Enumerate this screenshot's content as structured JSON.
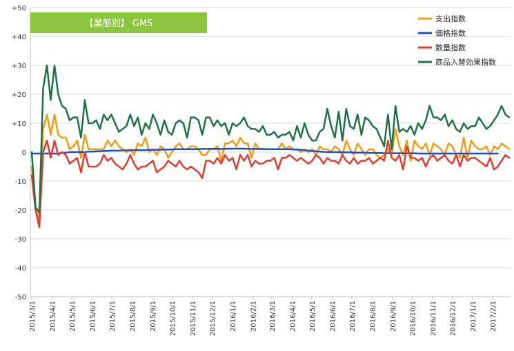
{
  "chart_data": {
    "type": "line",
    "title": "【業態別】 GMS",
    "title_box_color": "#8cc63f",
    "ylim": [
      -50,
      50
    ],
    "y_ticks": [
      50,
      40,
      30,
      20,
      10,
      0,
      -10,
      -20,
      -30,
      -40,
      -50
    ],
    "y_tick_labels": [
      "+50",
      "+40",
      "+30",
      "+20",
      "+10",
      "0",
      "-10",
      "-20",
      "-30",
      "-40",
      "-50"
    ],
    "x_start": "2015/3/1",
    "x_end": "2017/2/26",
    "x_tick_labels": [
      "2015/3/1",
      "2015/4/1",
      "2015/5/1",
      "2015/6/1",
      "2015/7/1",
      "2015/8/1",
      "2015/9/1",
      "2015/10/1",
      "2015/11/1",
      "2015/12/1",
      "2016/1/1",
      "2016/2/1",
      "2016/3/1",
      "2016/4/1",
      "2016/5/1",
      "2016/6/1",
      "2016/7/1",
      "2016/8/1",
      "2016/9/1",
      "2016/10/1",
      "2016/11/1",
      "2016/12/1",
      "2017/1/1",
      "2017/2/1"
    ],
    "grid": "horizontal",
    "legend_position": "top-right",
    "series": [
      {
        "name": "支出指数",
        "color": "#f39c12",
        "values": [
          -5,
          -20,
          -23,
          8,
          13,
          6,
          13,
          6,
          5,
          5,
          1,
          2,
          4,
          -2,
          6,
          1,
          1,
          1,
          1,
          1,
          4,
          2,
          4,
          2,
          1,
          0,
          1,
          -1,
          3,
          2,
          5,
          0,
          1,
          -1,
          2,
          1,
          -2,
          0,
          2,
          3,
          1,
          1,
          2,
          2,
          1,
          -1,
          -1,
          1,
          1,
          2,
          -3,
          3,
          3,
          4,
          2,
          5,
          3,
          3,
          -2,
          3,
          1,
          1,
          1,
          1,
          1,
          1,
          3,
          1,
          2,
          1,
          1,
          0,
          1,
          0,
          1,
          -1,
          2,
          1,
          1,
          0,
          2,
          1,
          -1,
          4,
          1,
          -1,
          3,
          1,
          -1,
          1,
          1,
          -1,
          -2,
          -1,
          1,
          -1,
          8,
          2,
          -1,
          4,
          -3,
          4,
          2,
          1,
          3,
          -1,
          3,
          2,
          1,
          -1,
          3,
          2,
          -1,
          -2,
          5,
          -2,
          4,
          2,
          1,
          1,
          2,
          -1,
          2,
          1,
          3,
          2,
          1
        ]
      },
      {
        "name": "価格指数",
        "color": "#1f4fc4",
        "values": [
          -0.5,
          -0.5,
          -0.5,
          -0.5,
          -0.5,
          -0.5,
          -0.5,
          -0.5,
          -0.3,
          -0.2,
          0,
          0,
          0,
          0,
          0,
          0.2,
          0.2,
          0.3,
          0.3,
          0.4,
          0.4,
          0.5,
          0.5,
          0.5,
          0.6,
          0.6,
          0.6,
          0.7,
          0.7,
          0.7,
          0.7,
          0.8,
          0.8,
          0.8,
          0.8,
          0.9,
          0.9,
          0.9,
          1,
          1,
          1,
          1,
          1,
          1,
          1,
          1.1,
          1.1,
          1.1,
          1.1,
          1.1,
          1.1,
          1.1,
          1.2,
          1.2,
          1.2,
          1.2,
          1.2,
          1.1,
          1.1,
          1.1,
          1.1,
          1.1,
          1,
          1,
          1,
          1,
          1,
          1,
          1,
          0.9,
          0.9,
          0.8,
          0.6,
          0.5,
          0.4,
          0.3,
          0.2,
          0.1,
          0,
          0,
          0,
          0,
          -0.1,
          -0.1,
          -0.1,
          -0.2,
          -0.2,
          -0.2,
          -0.2,
          -0.3,
          -0.3,
          -0.3,
          -0.3,
          -0.4,
          -0.4,
          -0.4,
          -0.4,
          -0.4,
          -0.4,
          -0.4,
          -0.4,
          -0.4,
          -0.5,
          -0.5,
          -0.5,
          -0.5,
          -0.5,
          -0.5,
          -0.5,
          -0.5,
          -0.5,
          -0.5,
          -0.5,
          -0.5,
          -0.5,
          -0.5,
          -0.5,
          -0.5,
          -0.5,
          -0.5,
          -0.5,
          -0.5,
          -0.5,
          -0.5
        ]
      },
      {
        "name": "数量指数",
        "color": "#e03c31",
        "values": [
          -8,
          -20,
          -26,
          0,
          4,
          -2,
          4,
          -1,
          0,
          -1,
          -4,
          -3,
          -2,
          -7,
          0,
          -5,
          -5,
          -5,
          -4,
          -1,
          -3,
          -2,
          -4,
          -5,
          -6,
          -4,
          -1,
          -4,
          -6,
          -5,
          -5,
          -4,
          -3,
          -7,
          -6,
          -5,
          -3,
          -4,
          -5,
          -3,
          -5,
          -6,
          -5,
          -6,
          -7,
          -9,
          -3,
          -3,
          -4,
          -2,
          -4,
          -1,
          -3,
          -2,
          -6,
          -1,
          -3,
          -1,
          -5,
          -3,
          -4,
          -4,
          -3,
          -3,
          -2,
          -6,
          -2,
          -2,
          -1,
          -2,
          -3,
          -2,
          -3,
          -4,
          -3,
          -1,
          -2,
          -4,
          -2,
          -3,
          -3,
          -4,
          -1,
          -3,
          -4,
          -2,
          -4,
          -3,
          -3,
          -2,
          -4,
          -3,
          -2,
          -3,
          4,
          -2,
          -3,
          -1,
          -6,
          2,
          -2,
          -2,
          -3,
          -2,
          -5,
          -2,
          -1,
          -3,
          -2,
          -1,
          -3,
          -4,
          -1,
          -5,
          -1,
          -3,
          -2,
          -2,
          -3,
          -4,
          -5,
          -2,
          -6,
          -5,
          -3,
          -1,
          -2
        ]
      },
      {
        "name": "商品入替効果指数",
        "color": "#1e7145",
        "values": [
          0,
          -19,
          -21,
          22,
          30,
          18,
          30,
          20,
          16,
          15,
          11,
          12,
          12,
          5,
          18,
          10,
          10,
          11,
          8,
          13,
          11,
          13,
          10,
          7,
          8,
          9,
          13,
          9,
          12,
          6,
          10,
          8,
          13,
          10,
          6,
          11,
          7,
          6,
          10,
          11,
          10,
          5,
          12,
          12,
          11,
          6,
          12,
          12,
          9,
          11,
          9,
          10,
          6,
          10,
          9,
          10,
          12,
          9,
          8,
          8,
          7,
          9,
          6,
          6,
          7,
          5,
          6,
          6,
          7,
          4,
          9,
          5,
          10,
          6,
          4,
          4,
          7,
          8,
          15,
          9,
          5,
          14,
          4,
          15,
          9,
          8,
          13,
          6,
          12,
          11,
          9,
          8,
          5,
          2,
          13,
          1,
          16,
          7,
          8,
          7,
          9,
          6,
          10,
          8,
          11,
          16,
          12,
          12,
          11,
          13,
          9,
          11,
          8,
          7,
          10,
          8,
          9,
          9,
          12,
          10,
          8,
          9,
          11,
          13,
          16,
          13,
          12
        ]
      }
    ]
  }
}
